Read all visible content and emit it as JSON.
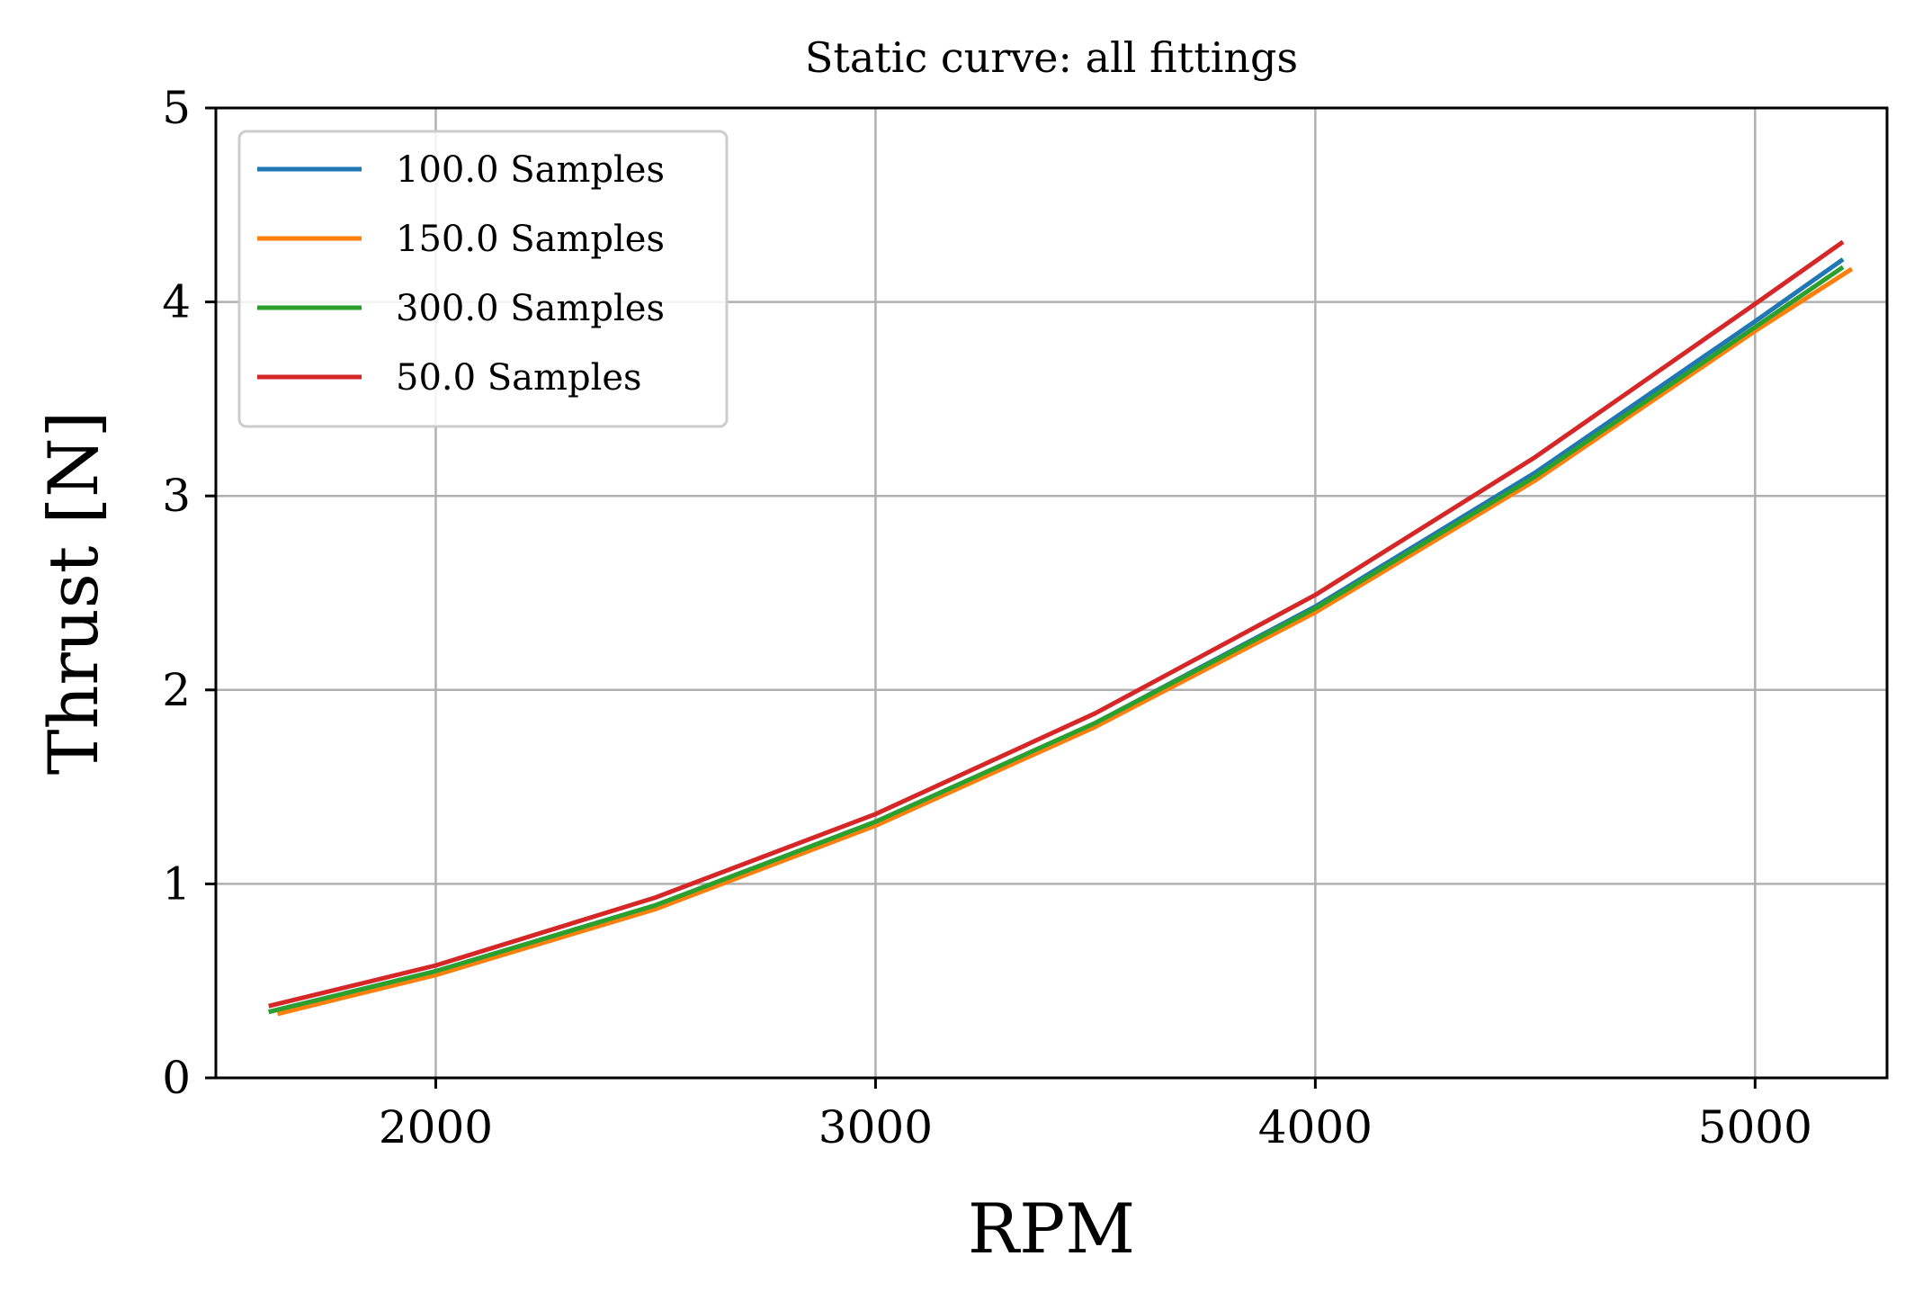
{
  "chart_data": {
    "type": "line",
    "title": "Static curve: all fittings",
    "xlabel": "RPM",
    "ylabel": "Thrust [N]",
    "xlim": [
      1500,
      5300
    ],
    "ylim": [
      0,
      5
    ],
    "xticks": [
      2000,
      3000,
      4000,
      5000
    ],
    "yticks": [
      0,
      1,
      2,
      3,
      4,
      5
    ],
    "grid": true,
    "legend_position": "top-left",
    "series": [
      {
        "name": "100.0 Samples",
        "color": "#1f77b4",
        "x": [
          1620,
          2000,
          2500,
          3000,
          3500,
          4000,
          4500,
          5000,
          5200
        ],
        "y": [
          0.34,
          0.55,
          0.89,
          1.32,
          1.83,
          2.43,
          3.12,
          3.9,
          4.22
        ]
      },
      {
        "name": "150.0 Samples",
        "color": "#ff7f0e",
        "x": [
          1640,
          2000,
          2500,
          3000,
          3500,
          4000,
          4500,
          5000,
          5220
        ],
        "y": [
          0.33,
          0.53,
          0.87,
          1.3,
          1.81,
          2.4,
          3.08,
          3.85,
          4.17
        ]
      },
      {
        "name": "300.0 Samples",
        "color": "#2ca02c",
        "x": [
          1620,
          2000,
          2500,
          3000,
          3500,
          4000,
          4500,
          5000,
          5200
        ],
        "y": [
          0.34,
          0.55,
          0.89,
          1.32,
          1.83,
          2.42,
          3.1,
          3.87,
          4.18
        ]
      },
      {
        "name": "50.0 Samples",
        "color": "#d62728",
        "x": [
          1620,
          2000,
          2500,
          3000,
          3500,
          4000,
          4500,
          5000,
          5200
        ],
        "y": [
          0.37,
          0.58,
          0.93,
          1.36,
          1.88,
          2.49,
          3.2,
          3.99,
          4.31
        ]
      }
    ]
  }
}
